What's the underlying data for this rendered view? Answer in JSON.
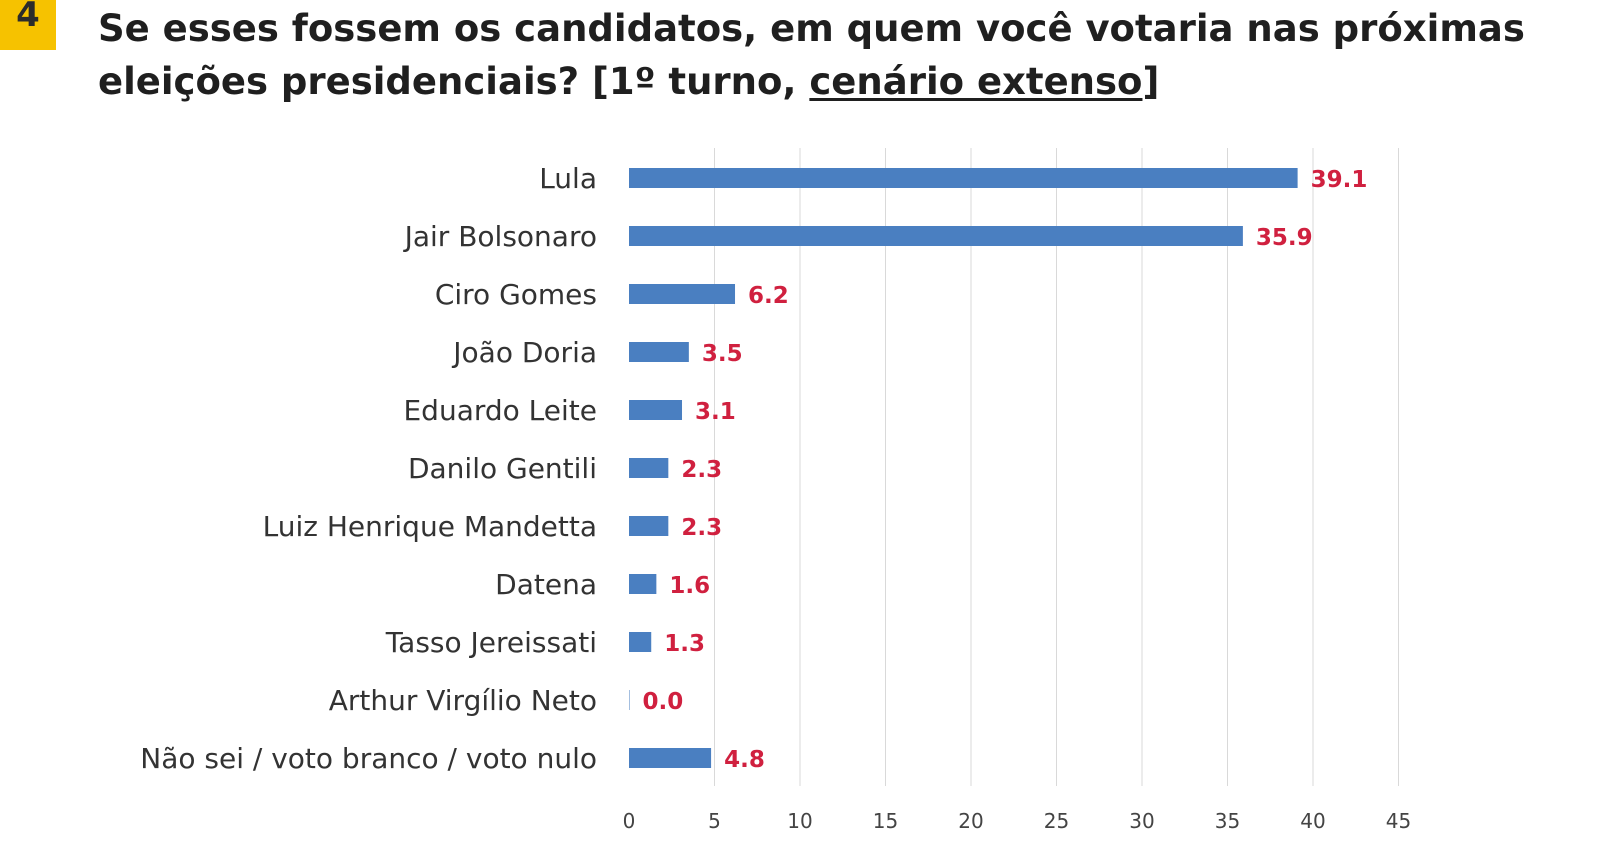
{
  "badge": "4",
  "title": {
    "main": "Se esses fossem os candidatos, em quem você votaria nas próximas eleições presidenciais? [1º turno, ",
    "underlined": "cenário extenso",
    "end": "]"
  },
  "colors": {
    "bar": "#4a7fc1",
    "value_label": "#d0203f",
    "grid": "#d9d9d9",
    "badge": "#f6c200"
  },
  "chart_data": {
    "type": "bar",
    "orientation": "horizontal",
    "categories": [
      "Lula",
      "Jair Bolsonaro",
      "Ciro Gomes",
      "João Doria",
      "Eduardo Leite",
      "Danilo Gentili",
      "Luiz Henrique Mandetta",
      "Datena",
      "Tasso Jereissati",
      "Arthur Virgílio Neto",
      "Não sei / voto branco / voto nulo"
    ],
    "values": [
      39.1,
      35.9,
      6.2,
      3.5,
      3.1,
      2.3,
      2.3,
      1.6,
      1.3,
      0.0,
      4.8
    ],
    "value_labels": [
      "39.1",
      "35.9",
      "6.2",
      "3.5",
      "3.1",
      "2.3",
      "2.3",
      "1.6",
      "1.3",
      "0.0",
      "4.8"
    ],
    "xlim": [
      0,
      45
    ],
    "xticks": [
      "0",
      "5",
      "10",
      "15",
      "20",
      "25",
      "30",
      "35",
      "40",
      "45"
    ],
    "grid": "vertical"
  }
}
